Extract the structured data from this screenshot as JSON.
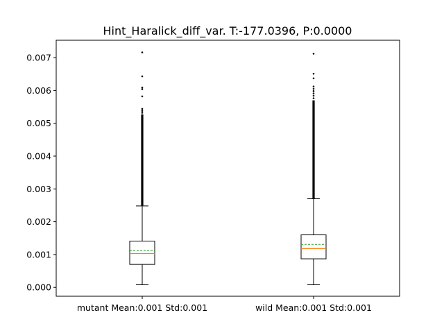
{
  "chart_data": {
    "type": "box",
    "title": "Hint_Haralick_diff_var. T:-177.0396, P:0.0000",
    "xlabel": "",
    "ylabel": "",
    "ylim": [
      -0.00027,
      0.00753
    ],
    "yticks": [
      {
        "value": 0.0,
        "label": "0.000"
      },
      {
        "value": 0.001,
        "label": "0.001"
      },
      {
        "value": 0.002,
        "label": "0.002"
      },
      {
        "value": 0.003,
        "label": "0.003"
      },
      {
        "value": 0.004,
        "label": "0.004"
      },
      {
        "value": 0.005,
        "label": "0.005"
      },
      {
        "value": 0.006,
        "label": "0.006"
      },
      {
        "value": 0.007,
        "label": "0.007"
      }
    ],
    "grid": false,
    "colors": {
      "box": "#000000",
      "median": "#ff7f0e",
      "mean": "#2ca02c",
      "outlier": "#000000"
    },
    "categories": [
      "mutant Mean:0.001 Std:0.001",
      "wild Mean:0.001 Std:0.001"
    ],
    "boxes": [
      {
        "whisker_low": 8e-05,
        "q1": 0.0007,
        "median": 0.00103,
        "mean": 0.00112,
        "q3": 0.00141,
        "whisker_high": 0.00248,
        "outliers": [
          0.00716,
          0.00643,
          0.00609,
          0.00604,
          0.00582,
          0.00544,
          0.00538,
          0.00532
        ],
        "outlier_dense_range": [
          0.00249,
          0.00527
        ]
      },
      {
        "whisker_low": 8e-05,
        "q1": 0.00087,
        "median": 0.00118,
        "mean": 0.00131,
        "q3": 0.0016,
        "whisker_high": 0.0027,
        "outliers": [
          0.00712,
          0.00651,
          0.00637,
          0.00612,
          0.00605,
          0.00598,
          0.00591,
          0.00584,
          0.00576
        ],
        "outlier_dense_range": [
          0.00271,
          0.0057
        ]
      }
    ]
  }
}
